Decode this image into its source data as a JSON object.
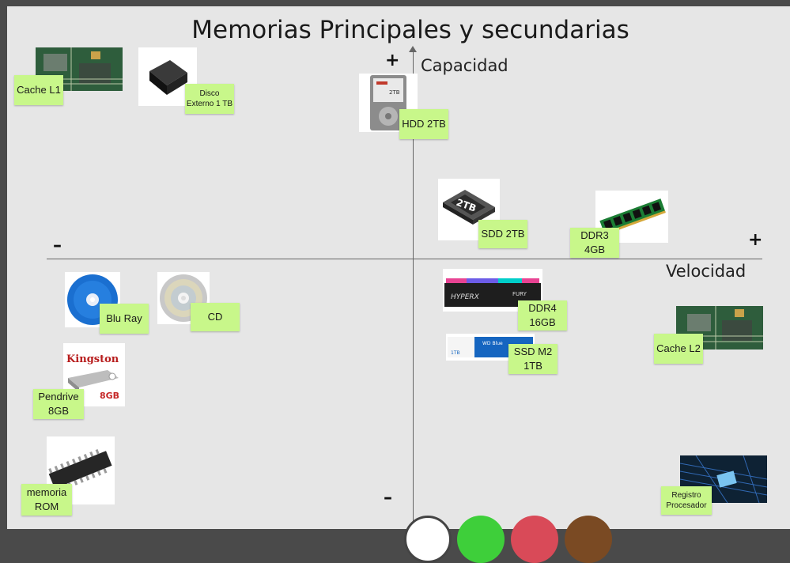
{
  "title": "Memorias Principales y secundarias",
  "axes": {
    "y_label": "Capacidad",
    "x_label": "Velocidad",
    "y_plus": "+",
    "y_minus": "–",
    "x_plus": "+",
    "x_minus": "–"
  },
  "items": {
    "cache_l1": "Cache L1",
    "disco_externo": "Disco Externo 1 TB",
    "hdd": "HDD 2TB",
    "sdd": "SDD 2TB",
    "ddr3": "DDR3 4GB",
    "blu_ray": "Blu Ray",
    "cd": "CD",
    "ddr4": "DDR4 16GB",
    "ssd_m2": "SSD M2 1TB",
    "cache_l2": "Cache L2",
    "pendrive": "Pendrive 8GB",
    "rom": "memoria ROM",
    "registro": "Registro Procesador"
  },
  "image_text": {
    "hdd_label": "2TB",
    "kingston": "Kingston",
    "pendrive_capacity": "8GB",
    "ddr4_brand": "HYPERX",
    "ddr4_model": "FURY",
    "ssd_brand": "WD Blue",
    "ssd_capacity": "1TB"
  },
  "colors": {
    "board": "#e6e6e6",
    "note": "#c8f78a",
    "frame": "#4a4a4a"
  }
}
